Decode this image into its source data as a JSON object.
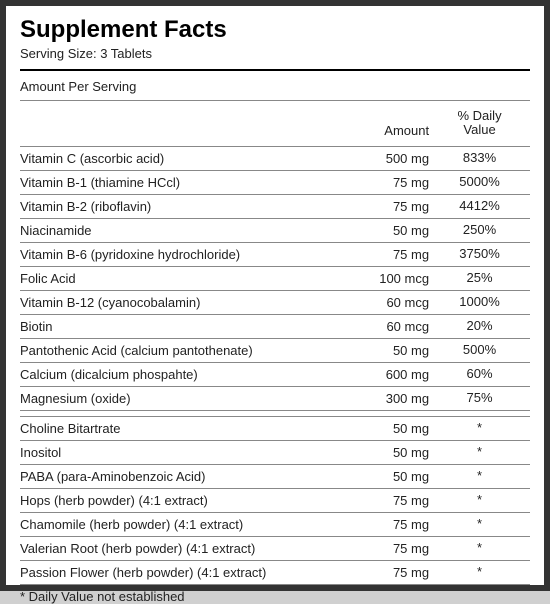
{
  "header": {
    "title": "Supplement Facts",
    "serving_size_label": "Serving Size: 3 Tablets",
    "amount_per_serving": "Amount Per Serving"
  },
  "columns": {
    "blank": "",
    "amount": "Amount",
    "dv_line1": "% Daily",
    "dv_line2": "Value"
  },
  "section1": [
    {
      "name": "Vitamin C (ascorbic acid)",
      "amount": "500 mg",
      "dv": "833%"
    },
    {
      "name": "Vitamin B-1 (thiamine HCcl)",
      "amount": "75 mg",
      "dv": "5000%"
    },
    {
      "name": "Vitamin B-2 (riboflavin)",
      "amount": "75 mg",
      "dv": "4412%"
    },
    {
      "name": "Niacinamide",
      "amount": "50 mg",
      "dv": "250%"
    },
    {
      "name": "Vitamin B-6 (pyridoxine hydrochloride)",
      "amount": "75 mg",
      "dv": "3750%"
    },
    {
      "name": "Folic Acid",
      "amount": "100 mcg",
      "dv": "25%"
    },
    {
      "name": "Vitamin B-12 (cyanocobalamin)",
      "amount": "60 mcg",
      "dv": "1000%"
    },
    {
      "name": "Biotin",
      "amount": "60 mcg",
      "dv": "20%"
    },
    {
      "name": "Pantothenic Acid (calcium pantothenate)",
      "amount": "50 mg",
      "dv": "500%"
    },
    {
      "name": "Calcium (dicalcium phospahte)",
      "amount": "600 mg",
      "dv": "60%"
    },
    {
      "name": "Magnesium (oxide)",
      "amount": "300 mg",
      "dv": "75%"
    }
  ],
  "section2": [
    {
      "name": "Choline Bitartrate",
      "amount": "50 mg",
      "dv": "*"
    },
    {
      "name": "Inositol",
      "amount": "50 mg",
      "dv": "*"
    },
    {
      "name": "PABA (para-Aminobenzoic Acid)",
      "amount": "50 mg",
      "dv": "*"
    },
    {
      "name": "Hops (herb powder) (4:1 extract)",
      "amount": "75 mg",
      "dv": "*"
    },
    {
      "name": "Chamomile (herb powder) (4:1 extract)",
      "amount": "75 mg",
      "dv": "*"
    },
    {
      "name": "Valerian Root (herb powder) (4:1 extract)",
      "amount": "75 mg",
      "dv": "*"
    },
    {
      "name": "Passion Flower (herb powder) (4:1 extract)",
      "amount": "75 mg",
      "dv": "*"
    }
  ],
  "footnote": "* Daily Value not established"
}
